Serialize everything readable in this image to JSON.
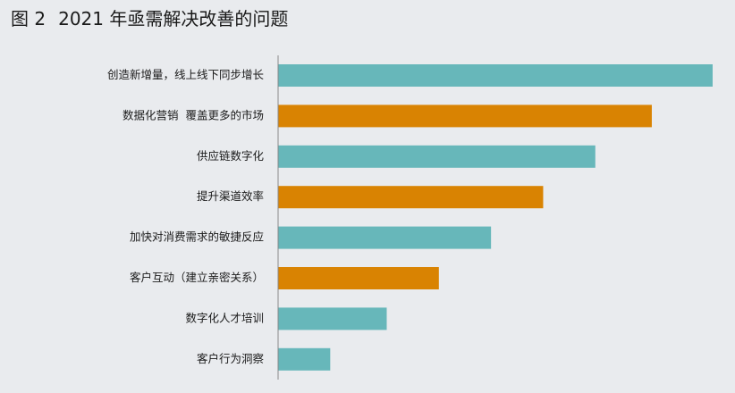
{
  "figure": {
    "label": "图 2",
    "title": "2021 年亟需解决改善的问题"
  },
  "chart_data": {
    "type": "bar",
    "orientation": "horizontal",
    "title": "2021 年亟需解决改善的问题",
    "xlabel": "",
    "ylabel": "",
    "grid": false,
    "legend": "none",
    "categories": [
      "创造新增量，线上线下同步增长",
      "数据化营销  覆盖更多的市场",
      "供应链数字化",
      "提升渠道效率",
      "加快对消费需求的敏捷反应",
      "客户互动（建立亲密关系）",
      "数字化人才培训",
      "客户行为洞察"
    ],
    "values": [
      100,
      86,
      73,
      61,
      49,
      37,
      25,
      12
    ],
    "xlim": [
      0,
      100
    ],
    "colors": [
      "#67b7ba",
      "#d98302",
      "#67b7ba",
      "#d98302",
      "#67b7ba",
      "#d98302",
      "#67b7ba",
      "#67b7ba"
    ],
    "axis_color": "#8a8a8a"
  }
}
